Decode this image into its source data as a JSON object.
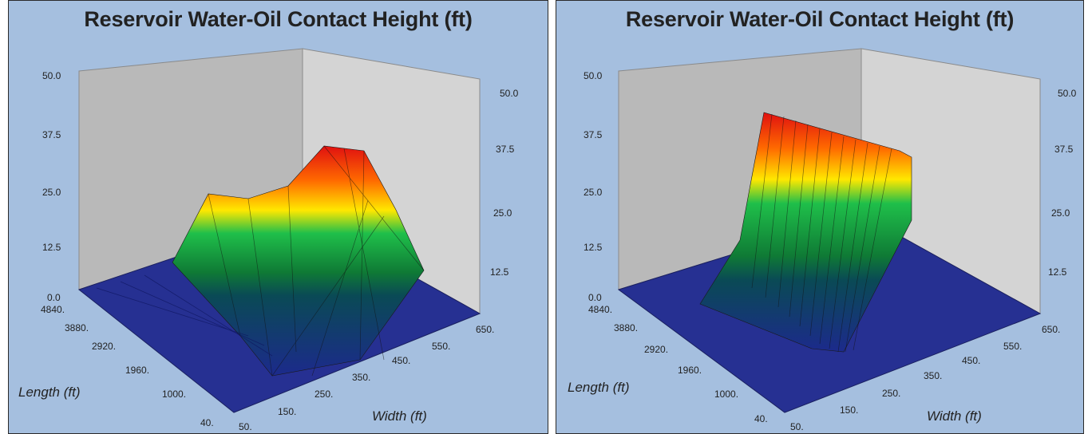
{
  "colors": {
    "background": "#a5bfdf",
    "wall_left": "#b4b4b4",
    "wall_right": "#d2d2d2",
    "floor": "#263092"
  },
  "chart_data": [
    {
      "type": "surface3d",
      "title": "Reservoir Water-Oil Contact Height (ft)",
      "xlabel": "Length (ft)",
      "ylabel": "Width (ft)",
      "zlim": [
        0,
        50
      ],
      "z_ticks": [
        "0.0",
        "12.5",
        "25.0",
        "37.5",
        "50.0"
      ],
      "z_ticks_right": [
        "12.5",
        "25.0",
        "37.5",
        "50.0"
      ],
      "length_ticks": [
        "40.",
        "1000.",
        "1960.",
        "2920.",
        "3880.",
        "4840."
      ],
      "width_ticks": [
        "50.",
        "150.",
        "250.",
        "350.",
        "450.",
        "550.",
        "650."
      ],
      "colorscale": [
        "#1c2a8c",
        "#0f7a35",
        "#1fbf4a",
        "#ffe800",
        "#ff6a00",
        "#e01010"
      ],
      "surface_description": "Water-oil contact rises to a ridge peaking near 38 ft toward the far corner; mostly flat near 0-5 ft elsewhere",
      "peak_height": 38
    },
    {
      "type": "surface3d",
      "title": "Reservoir Water-Oil Contact Height (ft)",
      "xlabel": "Length (ft)",
      "ylabel": "Width (ft)",
      "zlim": [
        0,
        50
      ],
      "z_ticks": [
        "0.0",
        "12.5",
        "25.0",
        "37.5",
        "50.0"
      ],
      "z_ticks_right": [
        "12.5",
        "25.0",
        "37.5",
        "50.0"
      ],
      "length_ticks": [
        "40.",
        "1000.",
        "1960.",
        "2920.",
        "3880.",
        "4840."
      ],
      "width_ticks": [
        "50.",
        "150.",
        "250.",
        "350.",
        "450.",
        "550.",
        "650."
      ],
      "colorscale": [
        "#1c2a8c",
        "#0f7a35",
        "#1fbf4a",
        "#ffe800",
        "#ff6a00",
        "#e01010"
      ],
      "surface_description": "Long ridge along length at about 40 ft height; flat floor elsewhere",
      "peak_height": 40
    }
  ]
}
